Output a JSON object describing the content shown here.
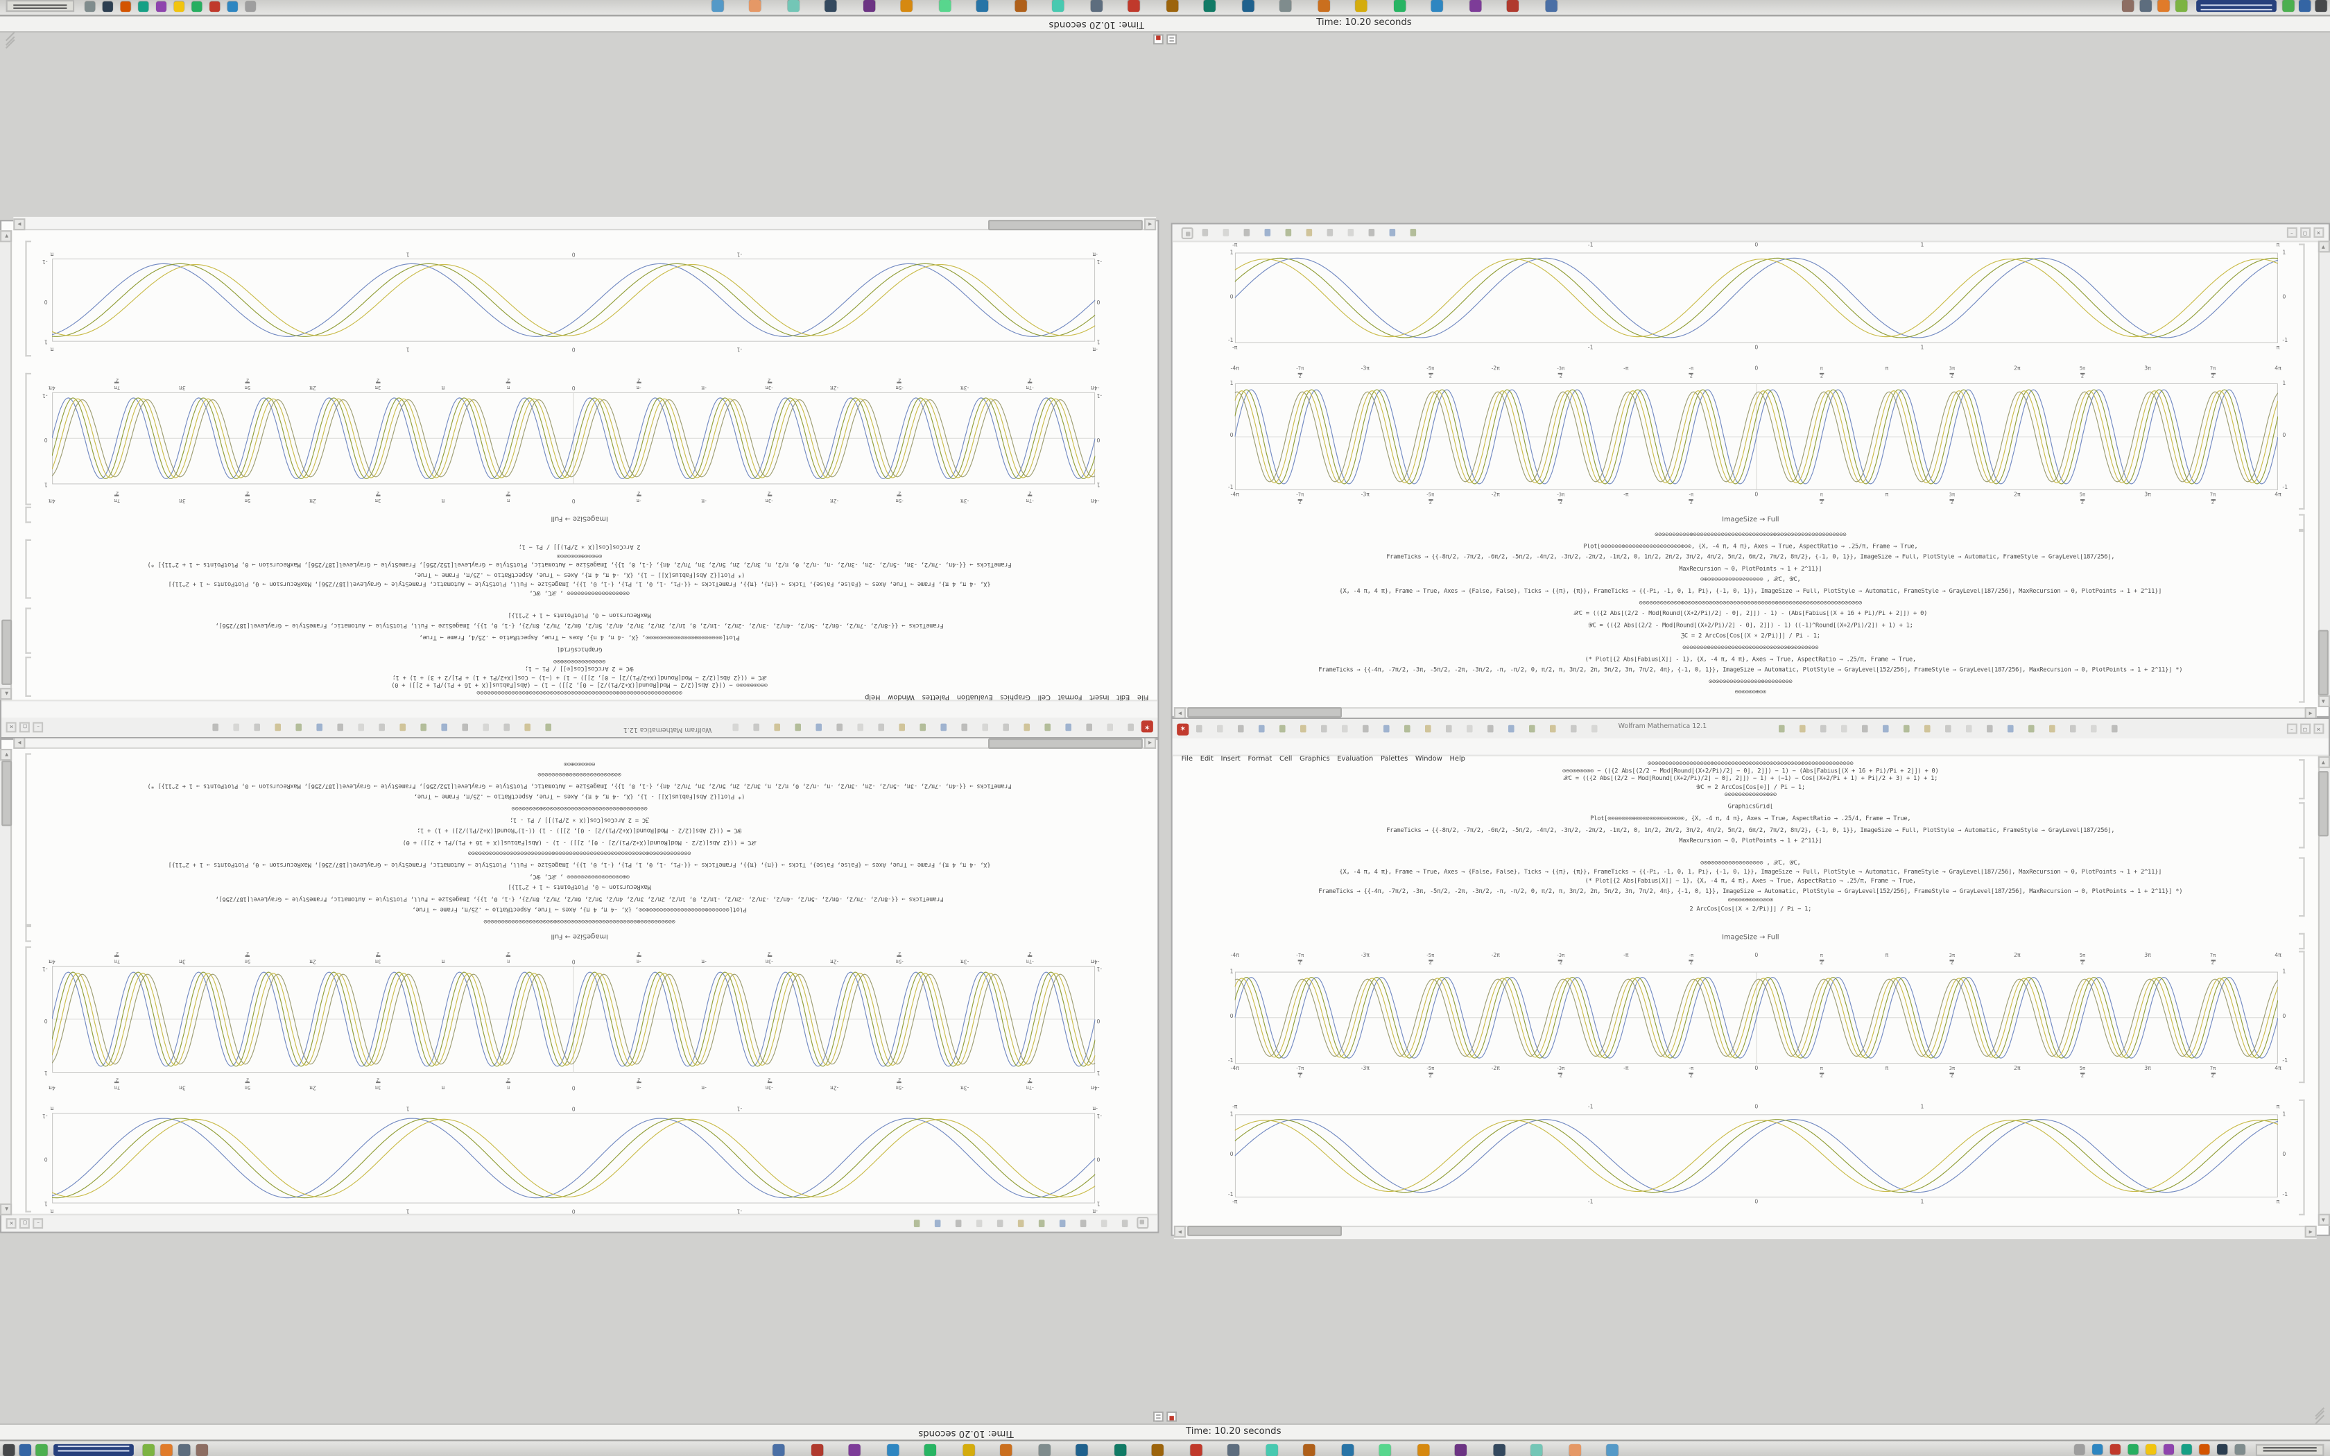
{
  "app": {
    "title": "Wolfram Mathematica 12.1"
  },
  "menu": {
    "items": [
      "File",
      "Edit",
      "Insert",
      "Format",
      "Cell",
      "Graphics",
      "Evaluation",
      "Palettes",
      "Window",
      "Help"
    ]
  },
  "status_bar": {
    "text": "Time: 10.20 seconds"
  },
  "notebook_upper": {
    "image_size_label": "ImageSize → Full",
    "code_lines": [
      "⊙⊘⊙⊙⊖⊙⊙⊙⊙⊙⊕⊙⊙⊙⊙⊙⊙⊙⊙⊘⊙⊙⊙⊙⊖⊙⊙⊙⊙⊙⊙⊙⊙⊙⊕⊙⊙⊙⊙⊙⊙⊙⊙⊙⊙⊙⊘⊙⊙⊙⊖⊙⊙⊙⊙",
      "Plot[⊙⊙⊖⊙⊙⊙⊕⊙⊙⊙⊙⊘⊙⊙⊙⊙⊙⊙⊙⊖⊙⊙⊙⊕⊙⊙, {X, -4 π, 4 π}, Axes → True, AspectRatio → .25/π, Frame → True,",
      "FrameTicks → {{-8π/2, -7π/2, -6π/2, -5π/2, -4π/2, -3π/2, -2π/2, -1π/2, 0, 1π/2, 2π/2, 3π/2, 4π/2, 5π/2, 6π/2, 7π/2, 8π/2}, {-1, 0, 1}}, ImageSize → Full, PlotStyle → Automatic, FrameStyle → GrayLevel[187/256],",
      "MaxRecursion → 0, PlotPoints → 1 + 2^11}]",
      "⊙⊕⊙⊙⊙⊖⊙⊙⊙⊙⊙⊙⊘⊙⊙⊙⊙⊙ , 𝒳C, 𝒴C,",
      "{X, -4 π, 4 π}, Frame → True, Axes → {False, False}, Ticks → {{π}, {π}}, FrameTicks → {{-Pi, -1, 0, 1, Pi}, {-1, 0, 1}}, ImageSize → Full, PlotStyle → Automatic, FrameStyle → GrayLevel[187/256], MaxRecursion → 0, PlotPoints → 1 + 2^11}]",
      "⊙⊙⊙⊙⊖⊙⊙⊙⊙⊙⊙⊙⊕⊙⊙⊙⊙⊙⊙⊙⊘⊙⊙⊙⊙⊙⊙⊙⊙⊙⊖⊙⊙⊙⊙⊙⊙⊙⊙⊕⊙⊙⊙⊙⊙⊙⊘⊙⊙⊙⊙⊙⊙⊙⊙⊖⊙⊙⊙⊙⊙⊙⊙⊙",
      "𝒳C = (({2 Abs[(2/2 - Mod[Round[(X∗2/Pi)/2] - 0], 2]]) - 1) - (Abs[Fabius[(X + 16 + Pi)/Pi + 2]]) + 0)",
      "𝒴C = (({2 Abs[(2/2 - Mod[Round[(X+2/Pi)/2] - 0], 2]]) - 1) ((-1)^Round[(X+2/Pi)/2]) + 1) + 1;",
      "ℨC = 2 ArcCos[Cos[(X ∗ 2/Pi)]] / Pi - 1;",
      "⊙⊙⊖⊙⊙⊙⊙⊕⊙⊙⊙⊙⊙⊘⊙⊙⊙⊙⊙⊙⊙⊖⊙⊙⊙⊙⊙⊙⊙⊙⊕⊙⊙⊙⊙⊘⊙⊙⊙",
      "(* Plot[{2 Abs[Fabius[X]] - 1}, {X, -4 π, 4 π}, Axes → True, AspectRatio → .25/π, Frame → True,",
      "FrameTicks → {{-4π, -7π/2, -3π, -5π/2, -2π, -3π/2, -π, -π/2, 0, π/2, π, 3π/2, 2π, 5π/2, 3π, 7π/2, 4π}, {-1, 0, 1}}, ImageSize → Automatic, PlotStyle → GrayLevel[152/256], FrameStyle → GrayLevel[187/256], MaxRecursion → 0, PlotPoints → 1 + 2^11}] *)",
      "⊙⊘⊙⊙⊙⊙⊖⊙⊙⊙⊙⊙⊙⊙⊙⊕⊙⊙⊙⊙⊙⊘⊙⊙",
      "⊖⊙⊙⊙⊙⊙⊕⊙⊙"
    ]
  },
  "notebook_lower": {
    "image_size_label": "ImageSize → Full",
    "code_block_1": [
      "⊙⊙⊙⊙⊘⊙⊙⊙⊙⊙⊖⊙⊙⊙⊙⊙⊙⊙⊕⊙⊙⊙⊙⊙⊙⊙⊙⊘⊙⊙⊙⊙⊙⊙⊖⊙⊙⊙⊙⊙⊙⊙⊙⊙⊕⊙⊙⊙⊙⊙⊙⊙⊙⊙⊙⊘⊙⊙⊙",
      "⊙⊖⊙⊙⊕⊙⊙⊙⊙ − (({2 Abs[(2/2 − Mod[Round[(X∗2/Pi)/2] − 0], 2]]) − 1) − (Abs[Fabius[(X + 16 + Pi)/Pi + 2]]) + 0)",
      "𝒳C = (({2 Abs[(2/2 − Mod[Round[(X+2/Pi)/2] − 0], 2]]) − 1) + (−1) − Cos[(X+2/Pi + 1) + Pi]/2 + 3) + 1) + 1;",
      "𝒴C = 2 ArcCos[Cos[⊙]] / Pi − 1;",
      "⊙⊙⊘⊙⊙⊙⊖⊙⊙⊙⊙⊙⊕⊙⊙"
    ],
    "code_block_2": [
      "GraphicsGrid[",
      "Plot[⊙⊙⊖⊙⊙⊙⊙⊕⊙⊙⊙⊘⊙⊙⊙⊙⊖⊙⊙⊙⊙⊙, {X, -4 π, 4 π}, Axes → True, AspectRatio → .25/4, Frame → True,",
      "FrameTicks → {{-8π/2, -7π/2, -6π/2, -5π/2, -4π/2, -3π/2, -2π/2, -1π/2, 0, 1π/2, 2π/2, 3π/2, 4π/2, 5π/2, 6π/2, 7π/2, 8π/2}, {-1, 0, 1}}, ImageSize → Full, PlotStyle → Automatic, FrameStyle → GrayLevel[187/256],",
      "MaxRecursion → 0, PlotPoints → 1 + 2^11}]"
    ],
    "code_block_3": [
      "⊙⊙⊕⊙⊙⊙⊙⊖⊙⊙⊙⊙⊙⊙⊘⊙⊙⊙ , 𝒳C, 𝒴C,",
      "{X, -4 π, 4 π}, Frame → True, Axes → {False, False}, Ticks → {{π}, {π}}, FrameTicks → {{-Pi, -1, 0, 1, Pi}, {-1, 0, 1}}, ImageSize → Full, PlotStyle → Automatic, FrameStyle → GrayLevel[187/256], MaxRecursion → 0, PlotPoints → 1 + 2^11}]",
      "(* Plot[{2 Abs[Fabius[X]] − 1}, {X, -4 π, 4 π}, Axes → True, AspectRatio → .25/π, Frame → True,",
      "FrameTicks → {{-4π, -7π/2, -3π, -5π/2, -2π, -3π/2, -π, -π/2, 0, π/2, π, 3π/2, 2π, 5π/2, 3π, 7π/2, 4π}, {-1, 0, 1}}, ImageSize → Automatic, PlotStyle → GrayLevel[152/256], FrameStyle → GrayLevel[187/256], MaxRecursion → 0, PlotPoints → 1 + 2^11}] *)",
      "⊙⊖⊙⊙⊙⊕⊙⊙⊙⊙⊘⊙⊙",
      "2 ArcCos[Cos[(X ∗ 2/Pi)]] / Pi − 1;"
    ]
  },
  "plots": {
    "dense_x_ticks": [
      "-4π",
      "-7π/2",
      "-3π",
      "-5π/2",
      "-2π",
      "-3π/2",
      "-π",
      "-π/2",
      "0",
      "π/2",
      "π",
      "3π/2",
      "2π",
      "5π/2",
      "3π",
      "7π/2",
      "4π"
    ],
    "smooth_x_ticks": [
      "-π",
      "-1",
      "0",
      "1",
      "π"
    ],
    "y_ticks": [
      "1",
      "0",
      "-1"
    ]
  },
  "chart_data": [
    {
      "id": "upper-plot-smooth",
      "type": "line",
      "title": "",
      "xlabel": "",
      "ylabel": "",
      "x_range": "[-π, π]",
      "y_range": "[-1, 1]",
      "x_label_ticks": [
        "-π",
        "-1",
        "0",
        "1",
        "π"
      ],
      "x_tick_pos": [
        0,
        0.341,
        0.5,
        0.659,
        1
      ],
      "y_label_ticks": [
        "1",
        "0",
        "-1"
      ],
      "center_axes": false,
      "grid": false,
      "legend": "none",
      "series": [
        {
          "name": "sine-wave-blue",
          "color": "#6e86c0",
          "cycles": 4.2,
          "phase": 0.0,
          "amplitude": 0.9
        },
        {
          "name": "sine-wave-olive",
          "color": "#8d9b31",
          "cycles": 4.2,
          "phase": 0.42,
          "amplitude": 0.9
        },
        {
          "name": "sine-wave-yellow",
          "color": "#c8b945",
          "cycles": 4.2,
          "phase": 0.8,
          "amplitude": 0.88
        }
      ]
    },
    {
      "id": "upper-plot-dense",
      "type": "line",
      "x_range": "[-4π, 4π]",
      "y_range": "[-1, 1]",
      "x_label_ticks": [
        "-4π",
        "-7π/2",
        "-3π",
        "-5π/2",
        "-2π",
        "-3π/2",
        "-π",
        "-π/2",
        "0",
        "π/2",
        "π",
        "3π/2",
        "2π",
        "5π/2",
        "3π",
        "7π/2",
        "4π"
      ],
      "y_label_ticks": [
        "1",
        "0",
        "-1"
      ],
      "center_axes": true,
      "grid": false,
      "legend": "none",
      "series": [
        {
          "name": "sine-wave-blue",
          "color": "#6e86c0",
          "cycles": 16,
          "phase": 0.0,
          "amplitude": 0.9
        },
        {
          "name": "sine-wave-olive",
          "color": "#8d9b31",
          "cycles": 16,
          "phase": 0.45,
          "amplitude": 0.9
        },
        {
          "name": "sine-wave-yellow",
          "color": "#c8b945",
          "cycles": 16,
          "phase": 0.9,
          "amplitude": 0.88
        },
        {
          "name": "sine-wave-graygreen",
          "color": "#9a9a6e",
          "cycles": 16,
          "phase": 1.35,
          "amplitude": 0.86
        }
      ]
    },
    {
      "id": "lower-plot-dense",
      "type": "line",
      "x_range": "[-4π, 4π]",
      "y_range": "[-1, 1]",
      "x_label_ticks": [
        "-4π",
        "-7π/2",
        "-3π",
        "-5π/2",
        "-2π",
        "-3π/2",
        "-π",
        "-π/2",
        "0",
        "π/2",
        "π",
        "3π/2",
        "2π",
        "5π/2",
        "3π",
        "7π/2",
        "4π"
      ],
      "y_label_ticks": [
        "1",
        "0",
        "-1"
      ],
      "center_axes": true,
      "grid": false,
      "legend": "none",
      "series": [
        {
          "name": "sine-wave-blue",
          "color": "#6e86c0",
          "cycles": 16,
          "phase": 0.0,
          "amplitude": 0.9
        },
        {
          "name": "sine-wave-olive",
          "color": "#8d9b31",
          "cycles": 16,
          "phase": 0.45,
          "amplitude": 0.9
        },
        {
          "name": "sine-wave-yellow",
          "color": "#c8b945",
          "cycles": 16,
          "phase": 0.9,
          "amplitude": 0.88
        },
        {
          "name": "sine-wave-graygreen",
          "color": "#9a9a6e",
          "cycles": 16,
          "phase": 1.35,
          "amplitude": 0.86
        }
      ]
    },
    {
      "id": "lower-plot-smooth",
      "type": "line",
      "x_range": "[-π, π]",
      "y_range": "[-1, 1]",
      "x_label_ticks": [
        "-π",
        "-1",
        "0",
        "1",
        "π"
      ],
      "x_tick_pos": [
        0,
        0.341,
        0.5,
        0.659,
        1
      ],
      "y_label_ticks": [
        "1",
        "0",
        "-1"
      ],
      "center_axes": false,
      "grid": false,
      "legend": "none",
      "series": [
        {
          "name": "sine-wave-blue",
          "color": "#6e86c0",
          "cycles": 4.2,
          "phase": 0.0,
          "amplitude": 0.9
        },
        {
          "name": "sine-wave-olive",
          "color": "#8d9b31",
          "cycles": 4.2,
          "phase": 0.42,
          "amplitude": 0.9
        },
        {
          "name": "sine-wave-yellow",
          "color": "#c8b945",
          "cycles": 4.2,
          "phase": 0.8,
          "amplitude": 0.88
        }
      ]
    }
  ],
  "taskbar": {
    "left_icons": [
      "#46484a",
      "#3465a4",
      "#4caf50"
    ],
    "window_button_color": "#27407c",
    "app_icons": [
      "#4a6fa5",
      "#b03a2e",
      "#7d3c98",
      "#2e86c1",
      "#28b463",
      "#d4ac0d",
      "#ca6f1e",
      "#7f8c8d",
      "#1f618d",
      "#117a65",
      "#9c640c",
      "#c0392b",
      "#5d6d7e",
      "#48c9b0",
      "#af601a",
      "#2874a6",
      "#58d68d",
      "#d68910",
      "#6c3483",
      "#34495e",
      "#73c6b6",
      "#e59866",
      "#5499c7"
    ],
    "tray_icons": [
      "#9e9e9e",
      "#2e86c1",
      "#c0392b",
      "#27ae60",
      "#f1c40f",
      "#8e44ad",
      "#16a085",
      "#d35400",
      "#2c3e50",
      "#7f8c8d"
    ]
  },
  "colors": {
    "desktop": "#d1d1cf",
    "spikey_icon": "#c23b2e",
    "wave_blue": "#6e86c0",
    "wave_olive": "#8d9b31",
    "wave_yellow": "#c8b945"
  }
}
